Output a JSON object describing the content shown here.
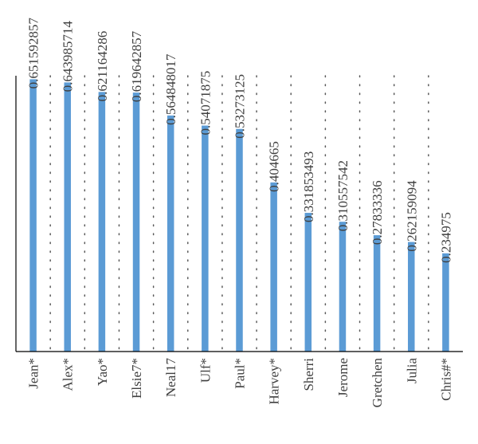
{
  "chart_data": {
    "type": "bar",
    "orientation": "vertical",
    "categories": [
      "Jean*",
      "Alex*",
      "Yao*",
      "Elsie7*",
      "Neal17",
      "Ulf*",
      "Paul*",
      "Harvey*",
      "Sherri",
      "Jerome",
      "Gretchen",
      "Julia",
      "Chris#*"
    ],
    "value_labels": [
      "0.651592857",
      "0.643985714",
      "0.621164286",
      "0.619642857",
      "0.564848017",
      "0.54071875",
      "0.53273125",
      "0.404665",
      "0.331853493",
      "0.310557542",
      "0.27833336",
      "0.262159094",
      "0.234975"
    ],
    "series": [
      {
        "values": [
          0.651592857,
          0.643985714,
          0.621164286,
          0.619642857,
          0.564848017,
          0.54071875,
          0.53273125,
          0.404665,
          0.331853493,
          0.310557542,
          0.27833336,
          0.262159094,
          0.234975
        ]
      }
    ],
    "ylim": [
      0,
      0.66
    ],
    "grid": "vertical dotted separators between categories",
    "bar_color": "#5b9bd5",
    "axis_color": "#000000",
    "label_color": "#404040"
  }
}
